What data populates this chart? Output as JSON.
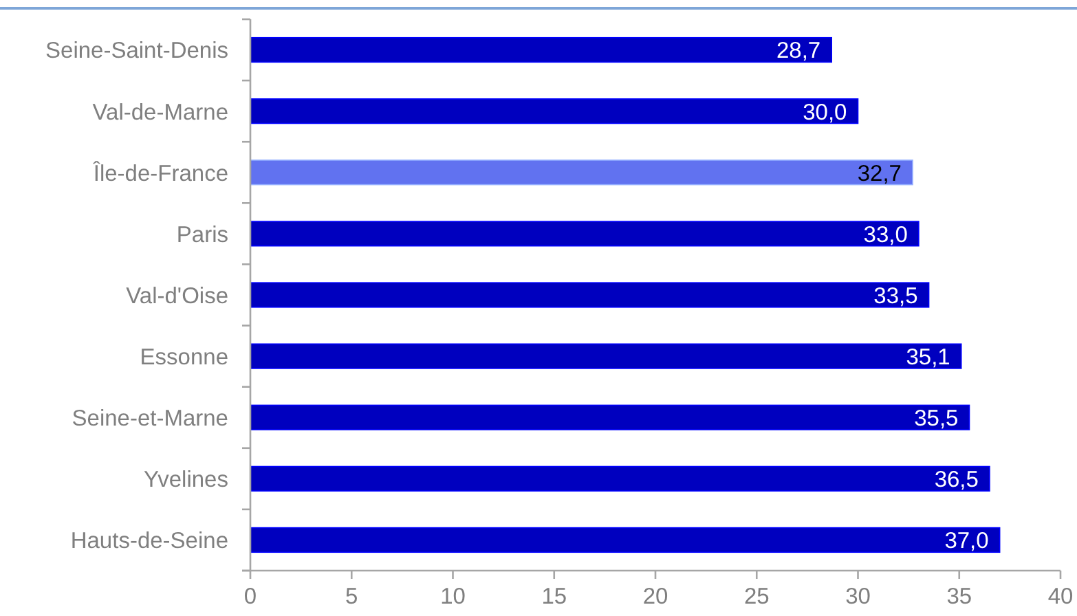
{
  "chart_data": {
    "type": "bar",
    "orientation": "horizontal",
    "categories": [
      "Seine-Saint-Denis",
      "Val-de-Marne",
      "Île-de-France",
      "Paris",
      "Val-d'Oise",
      "Essonne",
      "Seine-et-Marne",
      "Yvelines",
      "Hauts-de-Seine"
    ],
    "values": [
      28.7,
      30.0,
      32.7,
      33.0,
      33.5,
      35.1,
      35.5,
      36.5,
      37.0
    ],
    "colors": [
      "#0000bf",
      "#0000bf",
      "#6172f0",
      "#0000bf",
      "#0000bf",
      "#0000bf",
      "#0000bf",
      "#0000bf",
      "#0000bf"
    ],
    "value_labels": [
      "28,7",
      "30,0",
      "32,7",
      "33,0",
      "33,5",
      "35,1",
      "35,5",
      "36,5",
      "37,0"
    ],
    "xlim": [
      0,
      40
    ],
    "xticks": [
      0,
      5,
      10,
      15,
      20,
      25,
      30,
      35,
      40
    ]
  }
}
